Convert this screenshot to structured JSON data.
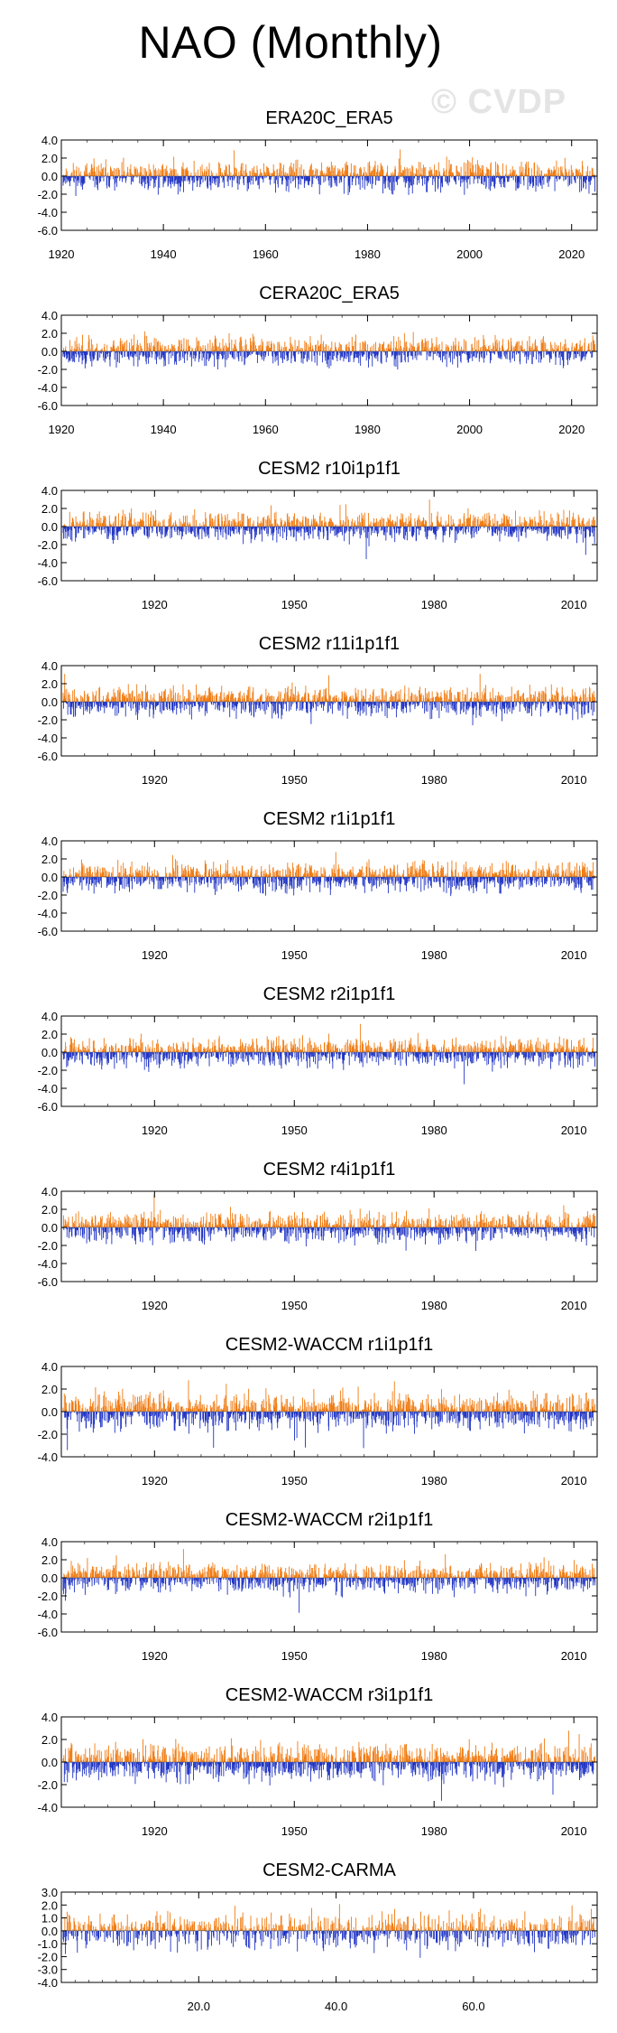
{
  "page": {
    "title": "NAO (Monthly)",
    "watermark": "© CVDP"
  },
  "colors": {
    "positive": "#f07a10",
    "negative": "#1f33c4",
    "faint": "#c8c8c8",
    "axis": "#000000"
  },
  "chart_data": [
    {
      "type": "bar",
      "title": "ERA20C_ERA5",
      "xlim": [
        1920,
        2025
      ],
      "ylim": [
        -6,
        4
      ],
      "yticks": [
        4.0,
        2.0,
        0.0,
        -2.0,
        -4.0,
        -6.0
      ],
      "ytick_labels": [
        "4.0",
        "2.0",
        "0.0",
        "-2.0",
        "-4.0",
        "-6.0"
      ],
      "xticks": [
        1920,
        1940,
        1960,
        1980,
        2000,
        2020
      ],
      "xtick_labels": [
        "1920",
        "1940",
        "1960",
        "1980",
        "2000",
        "2020"
      ],
      "n_points": 1260,
      "amplitude": 1.15,
      "trend": 0.15,
      "seed": 11
    },
    {
      "type": "bar",
      "title": "CERA20C_ERA5",
      "xlim": [
        1920,
        2025
      ],
      "ylim": [
        -6,
        4
      ],
      "yticks": [
        4.0,
        2.0,
        0.0,
        -2.0,
        -4.0,
        -6.0
      ],
      "ytick_labels": [
        "4.0",
        "2.0",
        "0.0",
        "-2.0",
        "-4.0",
        "-6.0"
      ],
      "xticks": [
        1920,
        1940,
        1960,
        1980,
        2000,
        2020
      ],
      "xtick_labels": [
        "1920",
        "1940",
        "1960",
        "1980",
        "2000",
        "2020"
      ],
      "n_points": 1260,
      "amplitude": 1.15,
      "trend": 0.15,
      "seed": 23
    },
    {
      "type": "bar",
      "title": "CESM2 r10i1p1f1",
      "xlim": [
        1900,
        2015
      ],
      "ylim": [
        -6,
        4
      ],
      "yticks": [
        4.0,
        2.0,
        0.0,
        -2.0,
        -4.0,
        -6.0
      ],
      "ytick_labels": [
        "4.0",
        "2.0",
        "0.0",
        "-2.0",
        "-4.0",
        "-6.0"
      ],
      "xticks": [
        1920,
        1950,
        1980,
        2010
      ],
      "xtick_labels": [
        "1920",
        "1950",
        "1980",
        "2010"
      ],
      "n_points": 1380,
      "amplitude": 1.15,
      "trend": 0,
      "seed": 37
    },
    {
      "type": "bar",
      "title": "CESM2 r11i1p1f1",
      "xlim": [
        1900,
        2015
      ],
      "ylim": [
        -6,
        4
      ],
      "yticks": [
        4.0,
        2.0,
        0.0,
        -2.0,
        -4.0,
        -6.0
      ],
      "ytick_labels": [
        "4.0",
        "2.0",
        "0.0",
        "-2.0",
        "-4.0",
        "-6.0"
      ],
      "xticks": [
        1920,
        1950,
        1980,
        2010
      ],
      "xtick_labels": [
        "1920",
        "1950",
        "1980",
        "2010"
      ],
      "n_points": 1380,
      "amplitude": 1.15,
      "trend": 0,
      "seed": 41
    },
    {
      "type": "bar",
      "title": "CESM2 r1i1p1f1",
      "xlim": [
        1900,
        2015
      ],
      "ylim": [
        -6,
        4
      ],
      "yticks": [
        4.0,
        2.0,
        0.0,
        -2.0,
        -4.0,
        -6.0
      ],
      "ytick_labels": [
        "4.0",
        "2.0",
        "0.0",
        "-2.0",
        "-4.0",
        "-6.0"
      ],
      "xticks": [
        1920,
        1950,
        1980,
        2010
      ],
      "xtick_labels": [
        "1920",
        "1950",
        "1980",
        "2010"
      ],
      "n_points": 1380,
      "amplitude": 1.15,
      "trend": 0,
      "seed": 53
    },
    {
      "type": "bar",
      "title": "CESM2 r2i1p1f1",
      "xlim": [
        1900,
        2015
      ],
      "ylim": [
        -6,
        4
      ],
      "yticks": [
        4.0,
        2.0,
        0.0,
        -2.0,
        -4.0,
        -6.0
      ],
      "ytick_labels": [
        "4.0",
        "2.0",
        "0.0",
        "-2.0",
        "-4.0",
        "-6.0"
      ],
      "xticks": [
        1920,
        1950,
        1980,
        2010
      ],
      "xtick_labels": [
        "1920",
        "1950",
        "1980",
        "2010"
      ],
      "n_points": 1380,
      "amplitude": 1.15,
      "trend": 0,
      "seed": 67
    },
    {
      "type": "bar",
      "title": "CESM2 r4i1p1f1",
      "xlim": [
        1900,
        2015
      ],
      "ylim": [
        -6,
        4
      ],
      "yticks": [
        4.0,
        2.0,
        0.0,
        -2.0,
        -4.0,
        -6.0
      ],
      "ytick_labels": [
        "4.0",
        "2.0",
        "0.0",
        "-2.0",
        "-4.0",
        "-6.0"
      ],
      "xticks": [
        1920,
        1950,
        1980,
        2010
      ],
      "xtick_labels": [
        "1920",
        "1950",
        "1980",
        "2010"
      ],
      "n_points": 1380,
      "amplitude": 1.15,
      "trend": 0,
      "seed": 71
    },
    {
      "type": "bar",
      "title": "CESM2-WACCM r1i1p1f1",
      "xlim": [
        1900,
        2015
      ],
      "ylim": [
        -4,
        4
      ],
      "yticks": [
        4.0,
        2.0,
        0.0,
        -2.0,
        -4.0
      ],
      "ytick_labels": [
        "4.0",
        "2.0",
        "0.0",
        "-2.0",
        "-4.0"
      ],
      "xticks": [
        1920,
        1950,
        1980,
        2010
      ],
      "xtick_labels": [
        "1920",
        "1950",
        "1980",
        "2010"
      ],
      "n_points": 1380,
      "amplitude": 1.15,
      "trend": 0,
      "seed": 83
    },
    {
      "type": "bar",
      "title": "CESM2-WACCM r2i1p1f1",
      "xlim": [
        1900,
        2015
      ],
      "ylim": [
        -6,
        4
      ],
      "yticks": [
        4.0,
        2.0,
        0.0,
        -2.0,
        -4.0,
        -6.0
      ],
      "ytick_labels": [
        "4.0",
        "2.0",
        "0.0",
        "-2.0",
        "-4.0",
        "-6.0"
      ],
      "xticks": [
        1920,
        1950,
        1980,
        2010
      ],
      "xtick_labels": [
        "1920",
        "1950",
        "1980",
        "2010"
      ],
      "n_points": 1380,
      "amplitude": 1.15,
      "trend": 0,
      "seed": 97
    },
    {
      "type": "bar",
      "title": "CESM2-WACCM r3i1p1f1",
      "xlim": [
        1900,
        2015
      ],
      "ylim": [
        -4,
        4
      ],
      "yticks": [
        4.0,
        2.0,
        0.0,
        -2.0,
        -4.0
      ],
      "ytick_labels": [
        "4.0",
        "2.0",
        "0.0",
        "-2.0",
        "-4.0"
      ],
      "xticks": [
        1920,
        1950,
        1980,
        2010
      ],
      "xtick_labels": [
        "1920",
        "1950",
        "1980",
        "2010"
      ],
      "n_points": 1380,
      "amplitude": 1.15,
      "trend": 0,
      "seed": 101
    },
    {
      "type": "bar",
      "title": "CESM2-CARMA",
      "xlim": [
        0,
        78
      ],
      "ylim": [
        -4,
        3
      ],
      "yticks": [
        3.0,
        2.0,
        1.0,
        0.0,
        -1.0,
        -2.0,
        -3.0,
        -4.0
      ],
      "ytick_labels": [
        "3.0",
        "2.0",
        "1.0",
        "0.0",
        "-1.0",
        "-2.0",
        "-3.0",
        "-4.0"
      ],
      "xticks": [
        20,
        40,
        60
      ],
      "xtick_labels": [
        "20.0",
        "40.0",
        "60.0"
      ],
      "n_points": 936,
      "amplitude": 1.0,
      "trend": 0,
      "seed": 113
    }
  ]
}
